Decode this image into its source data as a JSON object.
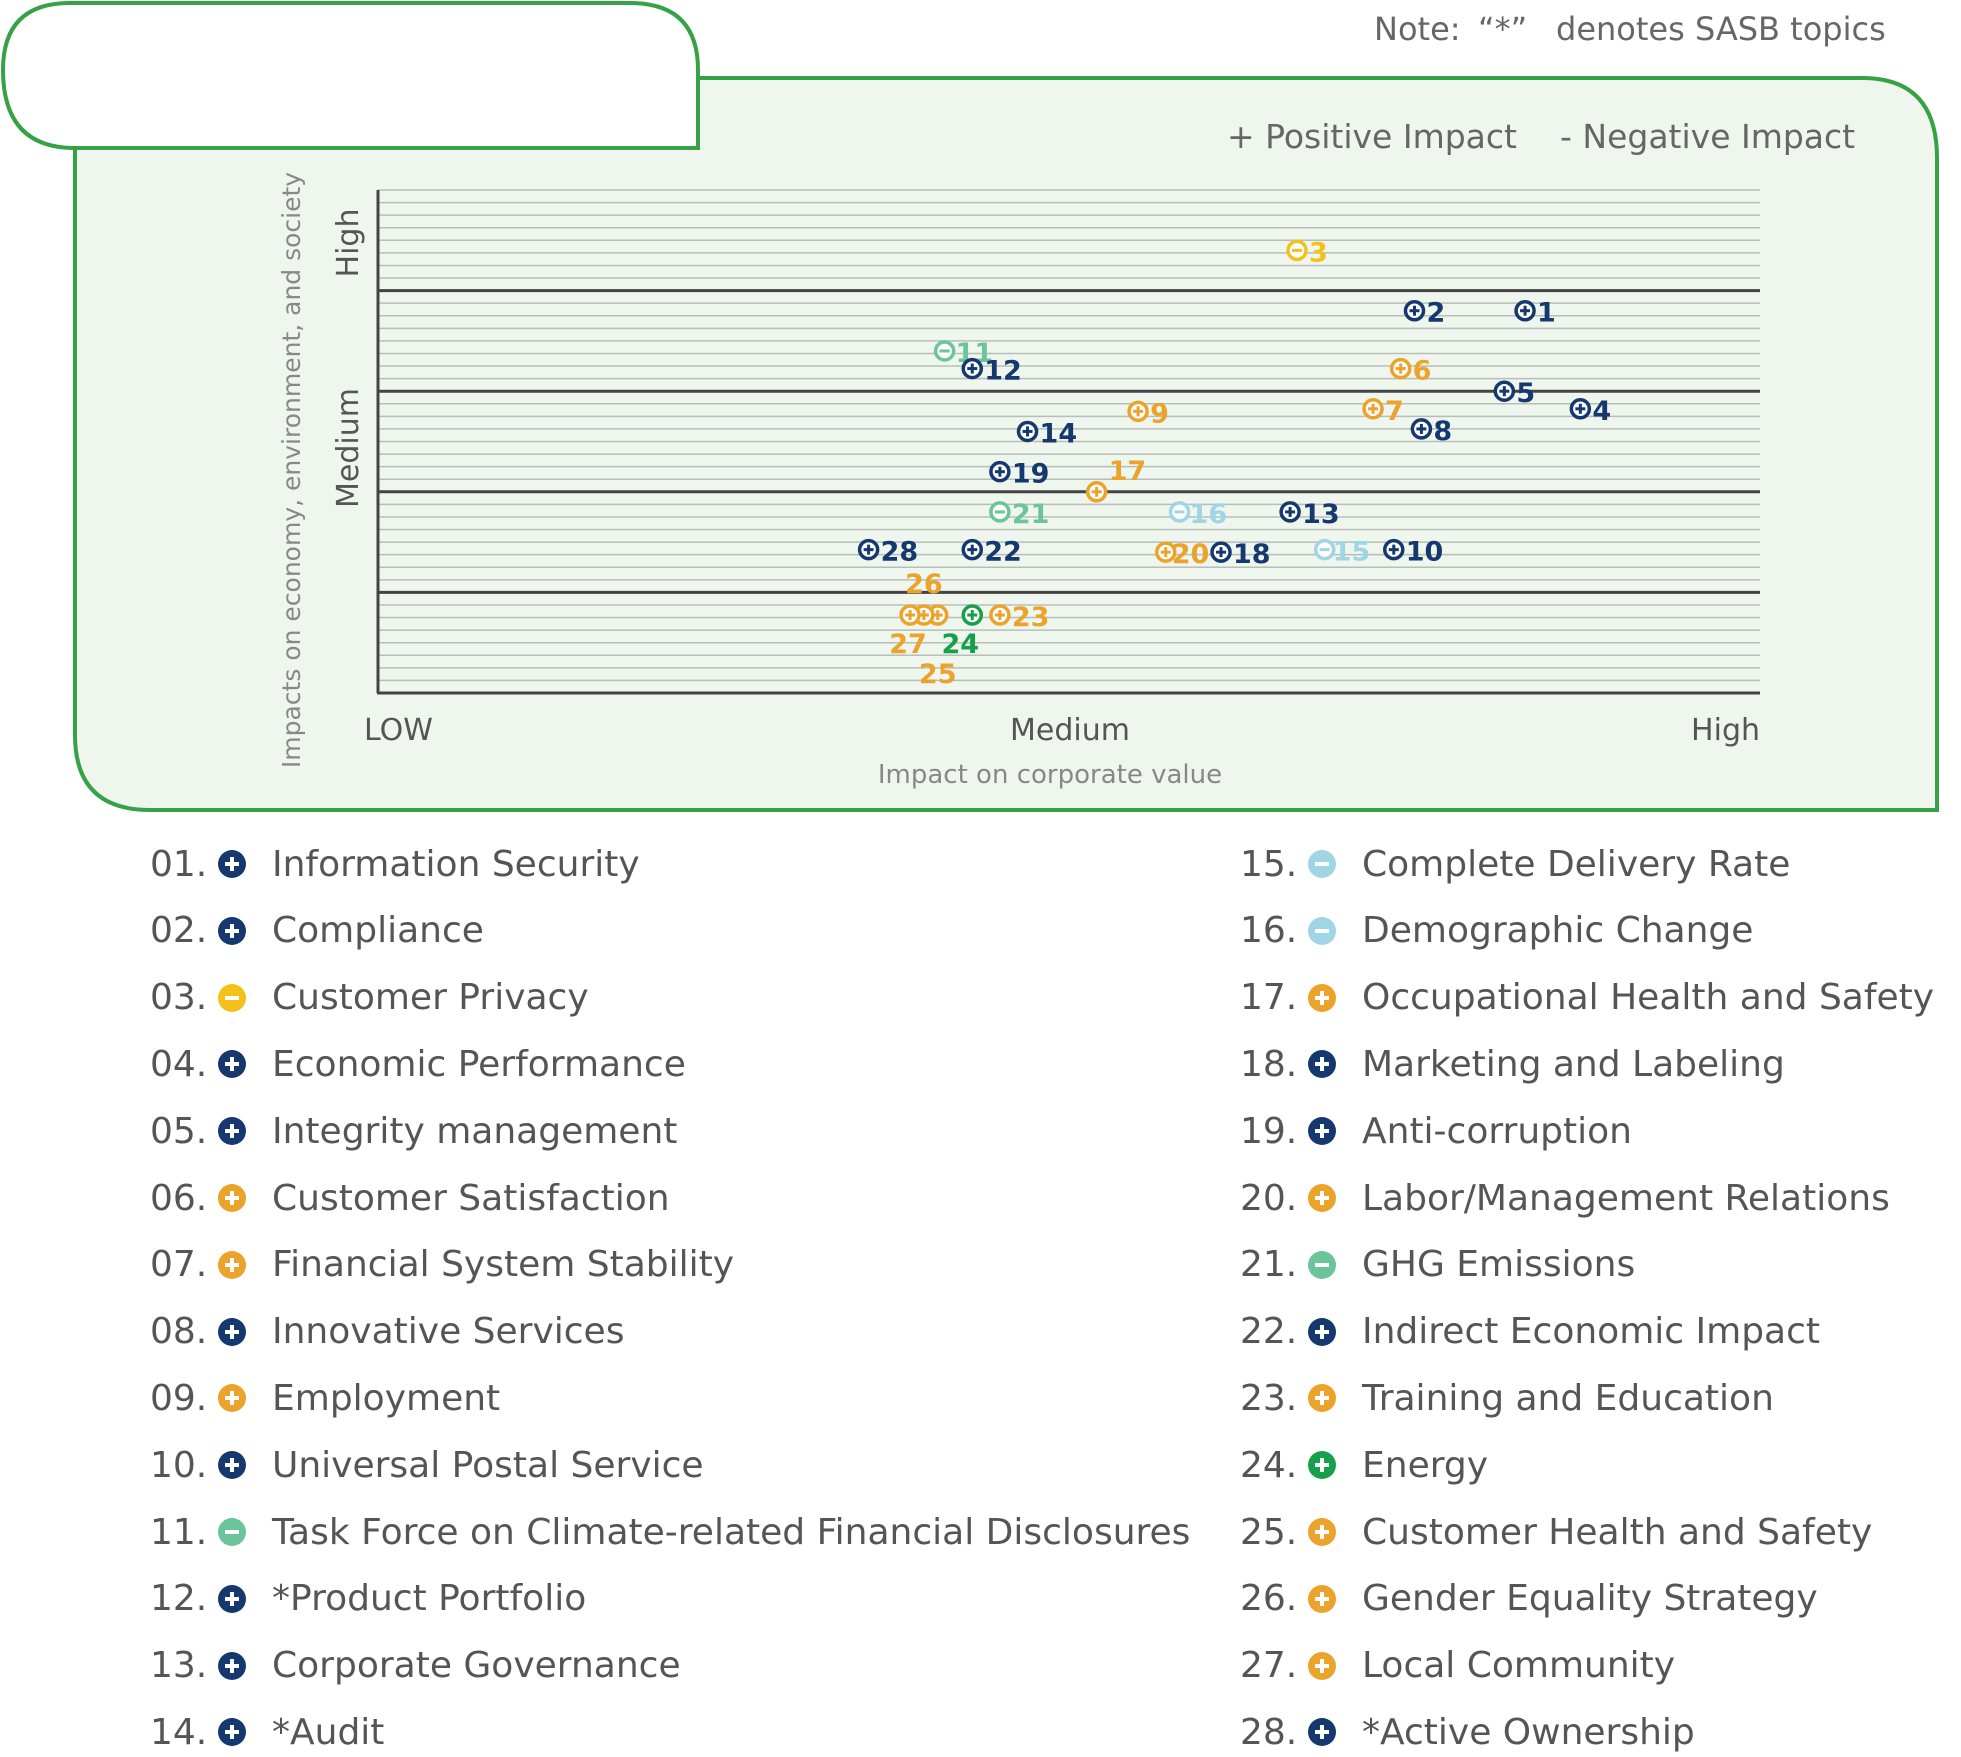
{
  "note": {
    "prefix": "Note:",
    "mark": "“*”",
    "text": "denotes SASB topics"
  },
  "impact_legend": {
    "positive": "+ Positive Impact",
    "negative": "- Negative Impact"
  },
  "colors": {
    "navy": "#15386f",
    "orange": "#eba32b",
    "yellow": "#f2c21a",
    "teal": "#6cc49a",
    "lightblue": "#9fd5e4",
    "green": "#16a04a",
    "frame": "#37a146",
    "panel": "#eef6ee"
  },
  "chart_data": {
    "type": "scatter",
    "xlabel": "Impact on corporate value",
    "ylabel": "Impacts on economy, environment, and society",
    "x_ticks": [
      "LOW",
      "Medium",
      "High"
    ],
    "y_ticks": [
      "High",
      "Medium"
    ],
    "xlim": [
      0,
      100
    ],
    "ylim": [
      0,
      100
    ],
    "grid": true,
    "bands": [
      20,
      40,
      60,
      80
    ],
    "points": [
      {
        "id": "1",
        "x": 83,
        "y": 76,
        "sign": "+",
        "color": "navy"
      },
      {
        "id": "2",
        "x": 75,
        "y": 76,
        "sign": "+",
        "color": "navy"
      },
      {
        "id": "3",
        "x": 66.5,
        "y": 88,
        "sign": "-",
        "color": "yellow"
      },
      {
        "id": "4",
        "x": 87,
        "y": 56.5,
        "sign": "+",
        "color": "navy"
      },
      {
        "id": "5",
        "x": 81.5,
        "y": 60,
        "sign": "+",
        "color": "navy"
      },
      {
        "id": "6",
        "x": 74,
        "y": 64.5,
        "sign": "+",
        "color": "orange"
      },
      {
        "id": "7",
        "x": 72,
        "y": 56.5,
        "sign": "+",
        "color": "orange"
      },
      {
        "id": "8",
        "x": 75.5,
        "y": 52.5,
        "sign": "+",
        "color": "navy"
      },
      {
        "id": "9",
        "x": 55,
        "y": 56,
        "sign": "+",
        "color": "orange"
      },
      {
        "id": "10",
        "x": 73.5,
        "y": 28.5,
        "sign": "+",
        "color": "navy"
      },
      {
        "id": "11",
        "x": 41,
        "y": 68,
        "sign": "-",
        "color": "teal"
      },
      {
        "id": "12",
        "x": 43,
        "y": 64.5,
        "sign": "+",
        "color": "navy"
      },
      {
        "id": "13",
        "x": 66,
        "y": 36,
        "sign": "+",
        "color": "navy"
      },
      {
        "id": "14",
        "x": 47,
        "y": 52,
        "sign": "+",
        "color": "navy"
      },
      {
        "id": "15",
        "x": 68.5,
        "y": 28.5,
        "sign": "-",
        "color": "lightblue"
      },
      {
        "id": "16",
        "x": 58,
        "y": 36,
        "sign": "-",
        "color": "lightblue"
      },
      {
        "id": "17",
        "x": 52,
        "y": 40,
        "sign": "+",
        "color": "orange"
      },
      {
        "id": "18",
        "x": 61,
        "y": 28,
        "sign": "+",
        "color": "navy"
      },
      {
        "id": "19",
        "x": 45,
        "y": 44,
        "sign": "+",
        "color": "navy"
      },
      {
        "id": "20",
        "x": 57,
        "y": 28,
        "sign": "+",
        "color": "orange"
      },
      {
        "id": "21",
        "x": 45,
        "y": 36,
        "sign": "-",
        "color": "teal"
      },
      {
        "id": "22",
        "x": 43,
        "y": 28.5,
        "sign": "+",
        "color": "navy"
      },
      {
        "id": "23",
        "x": 45,
        "y": 15.5,
        "sign": "+",
        "color": "orange"
      },
      {
        "id": "24",
        "x": 43,
        "y": 15.5,
        "sign": "+",
        "color": "green"
      },
      {
        "id": "25",
        "x": 40.5,
        "y": 15.5,
        "sign": "+",
        "color": "orange"
      },
      {
        "id": "26",
        "x": 39.5,
        "y": 15.5,
        "sign": "+",
        "color": "orange"
      },
      {
        "id": "27",
        "x": 38.5,
        "y": 15.5,
        "sign": "+",
        "color": "orange"
      },
      {
        "id": "28",
        "x": 35.5,
        "y": 28.5,
        "sign": "+",
        "color": "navy"
      }
    ]
  },
  "legend_left": [
    {
      "num": "01.",
      "sign": "+",
      "color": "navy",
      "label": "Information Security"
    },
    {
      "num": "02.",
      "sign": "+",
      "color": "navy",
      "label": "Compliance"
    },
    {
      "num": "03.",
      "sign": "-",
      "color": "yellow",
      "label": "Customer Privacy"
    },
    {
      "num": "04.",
      "sign": "+",
      "color": "navy",
      "label": "Economic Performance"
    },
    {
      "num": "05.",
      "sign": "+",
      "color": "navy",
      "label": "Integrity management"
    },
    {
      "num": "06.",
      "sign": "+",
      "color": "orange",
      "label": "Customer Satisfaction"
    },
    {
      "num": "07.",
      "sign": "+",
      "color": "orange",
      "label": "Financial System Stability"
    },
    {
      "num": "08.",
      "sign": "+",
      "color": "navy",
      "label": "Innovative Services"
    },
    {
      "num": "09.",
      "sign": "+",
      "color": "orange",
      "label": "Employment"
    },
    {
      "num": "10.",
      "sign": "+",
      "color": "navy",
      "label": "Universal Postal Service"
    },
    {
      "num": "11.",
      "sign": "-",
      "color": "teal",
      "label": "Task Force on Climate-related Financial Disclosures"
    },
    {
      "num": "12.",
      "sign": "+",
      "color": "navy",
      "label": "*Product Portfolio"
    },
    {
      "num": "13.",
      "sign": "+",
      "color": "navy",
      "label": "Corporate Governance"
    },
    {
      "num": "14.",
      "sign": "+",
      "color": "navy",
      "label": "*Audit"
    }
  ],
  "legend_right": [
    {
      "num": "15.",
      "sign": "-",
      "color": "lightblue",
      "label": "Complete Delivery Rate"
    },
    {
      "num": "16.",
      "sign": "-",
      "color": "lightblue",
      "label": "Demographic Change"
    },
    {
      "num": "17.",
      "sign": "+",
      "color": "orange",
      "label": "Occupational Health and Safety"
    },
    {
      "num": "18.",
      "sign": "+",
      "color": "navy",
      "label": "Marketing and Labeling"
    },
    {
      "num": "19.",
      "sign": "+",
      "color": "navy",
      "label": "Anti-corruption"
    },
    {
      "num": "20.",
      "sign": "+",
      "color": "orange",
      "label": "Labor/Management Relations"
    },
    {
      "num": "21.",
      "sign": "-",
      "color": "teal",
      "label": "GHG Emissions"
    },
    {
      "num": "22.",
      "sign": "+",
      "color": "navy",
      "label": "Indirect Economic Impact"
    },
    {
      "num": "23.",
      "sign": "+",
      "color": "orange",
      "label": "Training and Education"
    },
    {
      "num": "24.",
      "sign": "+",
      "color": "green",
      "label": "Energy"
    },
    {
      "num": "25.",
      "sign": "+",
      "color": "orange",
      "label": "Customer Health and Safety"
    },
    {
      "num": "26.",
      "sign": "+",
      "color": "orange",
      "label": "Gender Equality Strategy"
    },
    {
      "num": "27.",
      "sign": "+",
      "color": "orange",
      "label": "Local Community"
    },
    {
      "num": "28.",
      "sign": "+",
      "color": "navy",
      "label": "*Active Ownership"
    }
  ]
}
